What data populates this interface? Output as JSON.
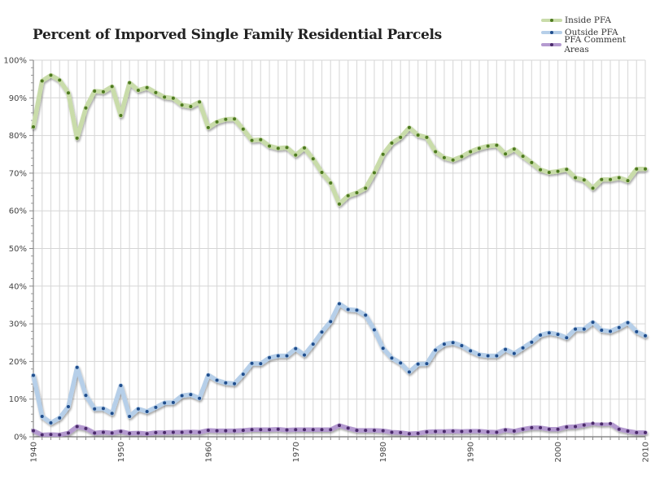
{
  "chart_data": {
    "type": "line",
    "title": "Percent of Imporved Single Family Residential Parcels",
    "xlabel": "",
    "ylabel": "",
    "x": [
      1940,
      1941,
      1942,
      1943,
      1944,
      1945,
      1946,
      1947,
      1948,
      1949,
      1950,
      1951,
      1952,
      1953,
      1954,
      1955,
      1956,
      1957,
      1958,
      1959,
      1960,
      1961,
      1962,
      1963,
      1964,
      1965,
      1966,
      1967,
      1968,
      1969,
      1970,
      1971,
      1972,
      1973,
      1974,
      1975,
      1976,
      1977,
      1978,
      1979,
      1980,
      1981,
      1982,
      1983,
      1984,
      1985,
      1986,
      1987,
      1988,
      1989,
      1990,
      1991,
      1992,
      1993,
      1994,
      1995,
      1996,
      1997,
      1998,
      1999,
      2000,
      2001,
      2002,
      2003,
      2004,
      2005,
      2006,
      2007,
      2008,
      2009,
      2010
    ],
    "xlim": [
      1940,
      2010
    ],
    "ylim": [
      0,
      100
    ],
    "y_ticks": [
      "0%",
      "10%",
      "20%",
      "30%",
      "40%",
      "50%",
      "60%",
      "70%",
      "80%",
      "90%",
      "100%"
    ],
    "x_ticks": [
      "1940",
      "1950",
      "1960",
      "1970",
      "1980",
      "1990",
      "2000",
      "2010"
    ],
    "grid": true,
    "legend_position": "top-right",
    "series": [
      {
        "name": "Inside PFA",
        "line_color": "#c9dcaa",
        "marker_color": "#4d7a1f",
        "values": [
          82.3,
          94.5,
          96.0,
          94.7,
          91.3,
          79.3,
          87.3,
          91.8,
          91.6,
          93.0,
          85.3,
          94.0,
          92.0,
          92.7,
          91.4,
          90.2,
          89.9,
          88.1,
          87.7,
          88.9,
          82.1,
          83.6,
          84.3,
          84.4,
          81.7,
          78.7,
          78.9,
          77.2,
          76.6,
          76.8,
          74.8,
          76.7,
          73.8,
          70.2,
          67.4,
          61.8,
          64.0,
          64.8,
          66.0,
          70.1,
          75.0,
          78.0,
          79.5,
          82.1,
          80.1,
          79.5,
          75.7,
          74.1,
          73.5,
          74.4,
          75.7,
          76.6,
          77.2,
          77.4,
          75.1,
          76.4,
          74.5,
          72.8,
          70.9,
          70.2,
          70.5,
          71.0,
          68.8,
          68.2,
          66.0,
          68.3,
          68.3,
          68.8,
          68.0,
          71.1,
          71.1
        ]
      },
      {
        "name": "Outside PFA",
        "line_color": "#b6cfe9",
        "marker_color": "#1f4d8c",
        "values": [
          16.3,
          5.4,
          3.7,
          5.0,
          8.0,
          18.4,
          11.0,
          7.4,
          7.5,
          6.2,
          13.6,
          5.4,
          7.4,
          6.7,
          7.8,
          9.0,
          9.1,
          10.9,
          11.2,
          10.2,
          16.4,
          15.0,
          14.3,
          14.1,
          16.6,
          19.5,
          19.4,
          21.0,
          21.5,
          21.5,
          23.4,
          21.7,
          24.6,
          27.8,
          30.6,
          35.3,
          33.8,
          33.6,
          32.3,
          28.4,
          23.5,
          20.9,
          19.6,
          17.2,
          19.3,
          19.4,
          23.0,
          24.6,
          25.0,
          24.2,
          22.8,
          21.8,
          21.5,
          21.5,
          23.2,
          22.1,
          23.6,
          25.1,
          27.0,
          27.6,
          27.2,
          26.3,
          28.6,
          28.6,
          30.4,
          28.3,
          28.0,
          29.0,
          30.3,
          27.9,
          26.8
        ]
      },
      {
        "name": "PFA Comment Areas",
        "line_color": "#b49ad0",
        "marker_color": "#4a2a6a",
        "values": [
          1.6,
          0.5,
          0.6,
          0.5,
          1.0,
          2.7,
          2.2,
          1.0,
          1.2,
          1.0,
          1.4,
          0.9,
          1.0,
          0.8,
          1.1,
          1.1,
          1.2,
          1.2,
          1.3,
          1.2,
          1.7,
          1.6,
          1.6,
          1.6,
          1.7,
          1.9,
          1.9,
          1.9,
          2.0,
          1.8,
          1.9,
          1.9,
          1.9,
          1.9,
          1.9,
          3.0,
          2.3,
          1.7,
          1.7,
          1.7,
          1.6,
          1.2,
          1.1,
          0.8,
          0.9,
          1.3,
          1.4,
          1.4,
          1.5,
          1.4,
          1.5,
          1.5,
          1.3,
          1.2,
          1.8,
          1.5,
          2.0,
          2.4,
          2.4,
          2.0,
          2.0,
          2.6,
          2.7,
          3.1,
          3.6,
          3.4,
          3.5,
          2.0,
          1.5,
          1.1,
          1.1
        ]
      }
    ]
  }
}
